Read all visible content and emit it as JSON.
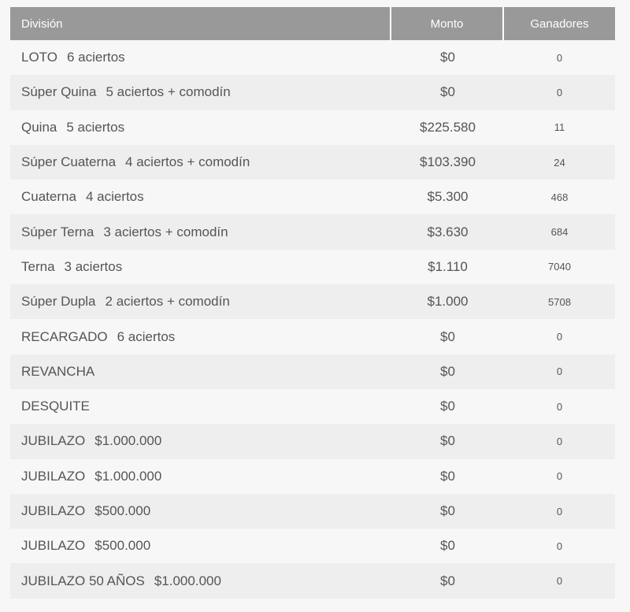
{
  "headers": {
    "division": "División",
    "monto": "Monto",
    "ganadores": "Ganadores"
  },
  "rows": [
    {
      "name": "LOTO",
      "detail": "6 aciertos",
      "monto": "$0",
      "ganadores": "0"
    },
    {
      "name": "Súper Quina",
      "detail": "5 aciertos + comodín",
      "monto": "$0",
      "ganadores": "0"
    },
    {
      "name": "Quina",
      "detail": "5 aciertos",
      "monto": "$225.580",
      "ganadores": "11"
    },
    {
      "name": "Súper Cuaterna",
      "detail": "4 aciertos + comodín",
      "monto": "$103.390",
      "ganadores": "24"
    },
    {
      "name": "Cuaterna",
      "detail": "4 aciertos",
      "monto": "$5.300",
      "ganadores": "468"
    },
    {
      "name": "Súper Terna",
      "detail": "3 aciertos + comodín",
      "monto": "$3.630",
      "ganadores": "684"
    },
    {
      "name": "Terna",
      "detail": "3 aciertos",
      "monto": "$1.110",
      "ganadores": "7040"
    },
    {
      "name": "Súper Dupla",
      "detail": "2 aciertos + comodín",
      "monto": "$1.000",
      "ganadores": "5708"
    },
    {
      "name": "RECARGADO",
      "detail": "6 aciertos",
      "monto": "$0",
      "ganadores": "0"
    },
    {
      "name": "REVANCHA",
      "detail": "",
      "monto": "$0",
      "ganadores": "0"
    },
    {
      "name": "DESQUITE",
      "detail": "",
      "monto": "$0",
      "ganadores": "0"
    },
    {
      "name": "JUBILAZO",
      "detail": "$1.000.000",
      "monto": "$0",
      "ganadores": "0"
    },
    {
      "name": "JUBILAZO",
      "detail": "$1.000.000",
      "monto": "$0",
      "ganadores": "0"
    },
    {
      "name": "JUBILAZO",
      "detail": "$500.000",
      "monto": "$0",
      "ganadores": "0"
    },
    {
      "name": "JUBILAZO",
      "detail": "$500.000",
      "monto": "$0",
      "ganadores": "0"
    },
    {
      "name": "JUBILAZO 50 AÑOS",
      "detail": "$1.000.000",
      "monto": "$0",
      "ganadores": "0"
    }
  ]
}
